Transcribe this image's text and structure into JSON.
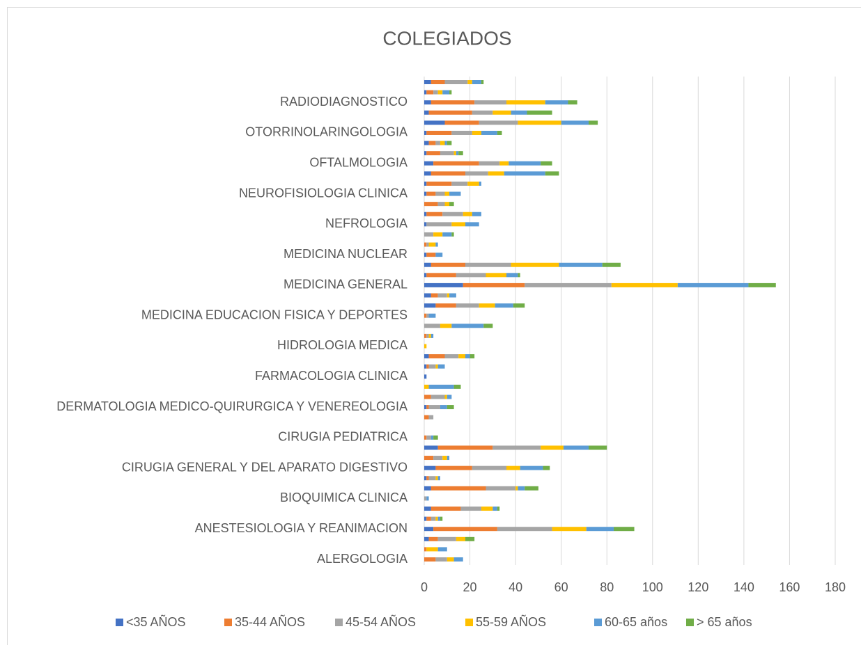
{
  "chart_data": {
    "type": "stacked_barh",
    "title": "COLEGIADOS",
    "categories": [
      "ALERGOLOGIA",
      null,
      null,
      "ANESTESIOLOGIA Y REANIMACION",
      null,
      null,
      "BIOQUIMICA CLINICA",
      null,
      null,
      "CIRUGIA GENERAL Y DEL APARATO DIGESTIVO",
      null,
      null,
      "CIRUGIA PEDIATRICA",
      null,
      null,
      "DERMATOLOGIA MEDICO-QUIRURGICA Y VENEREOLOGIA",
      null,
      null,
      "FARMACOLOGIA CLINICA",
      null,
      null,
      "HIDROLOGIA MEDICA",
      null,
      null,
      "MEDICINA EDUCACION FISICA Y DEPORTES",
      null,
      null,
      "MEDICINA GENERAL",
      null,
      null,
      "MEDICINA NUCLEAR",
      null,
      null,
      "NEFROLOGIA",
      null,
      null,
      "NEUROFISIOLOGIA CLINICA",
      null,
      null,
      "OFTALMOLOGIA",
      null,
      null,
      "OTORRINOLARINGOLOGIA",
      null,
      null,
      "RADIODIAGNOSTICO",
      null,
      null
    ],
    "series": [
      {
        "name": "<35 AÑOS",
        "color": "#4472c4",
        "values": [
          0,
          0,
          2,
          4,
          1,
          3,
          0,
          3,
          1,
          5,
          0,
          6,
          0,
          0,
          0,
          1,
          0,
          0,
          1,
          1,
          2,
          0,
          0,
          0,
          0,
          5,
          3,
          17,
          1,
          3,
          1,
          0,
          0,
          1,
          1,
          0,
          1,
          1,
          3,
          4,
          1,
          2,
          1,
          9,
          2,
          3,
          1,
          3
        ]
      },
      {
        "name": "35-44 AÑOS",
        "color": "#ed7d31",
        "values": [
          5,
          1,
          4,
          28,
          2,
          13,
          0,
          24,
          1,
          16,
          4,
          24,
          1,
          0,
          2,
          1,
          3,
          0,
          0,
          1,
          7,
          0,
          1,
          0,
          1,
          9,
          3,
          27,
          13,
          15,
          4,
          1,
          0,
          0,
          7,
          6,
          4,
          11,
          15,
          20,
          6,
          3,
          11,
          15,
          19,
          19,
          3,
          6
        ]
      },
      {
        "name": "45-54 AÑOS",
        "color": "#a5a5a5",
        "values": [
          5,
          0,
          8,
          24,
          2,
          9,
          1,
          13,
          3,
          15,
          4,
          21,
          2,
          0,
          2,
          5,
          6,
          0,
          0,
          3,
          6,
          0,
          1,
          7,
          1,
          10,
          4,
          38,
          13,
          20,
          0,
          1,
          4,
          11,
          9,
          3,
          4,
          7,
          10,
          9,
          6,
          2,
          9,
          17,
          9,
          14,
          2,
          10
        ]
      },
      {
        "name": "55-59 AÑOS",
        "color": "#ffc000",
        "values": [
          3,
          5,
          4,
          15,
          1,
          5,
          0,
          1,
          1,
          6,
          2,
          10,
          0,
          0,
          0,
          0,
          1,
          2,
          0,
          1,
          3,
          1,
          1,
          5,
          0,
          7,
          1,
          29,
          9,
          21,
          0,
          3,
          4,
          6,
          4,
          2,
          2,
          5,
          7,
          4,
          1,
          2,
          4,
          19,
          8,
          17,
          2,
          2
        ]
      },
      {
        "name": "60-65 años",
        "color": "#5b9bd5",
        "values": [
          4,
          4,
          0,
          12,
          1,
          2,
          1,
          3,
          1,
          10,
          1,
          11,
          1,
          0,
          0,
          3,
          2,
          11,
          0,
          3,
          2,
          0,
          1,
          14,
          3,
          8,
          3,
          31,
          5,
          19,
          3,
          1,
          4,
          6,
          4,
          0,
          5,
          1,
          18,
          14,
          1,
          1,
          7,
          12,
          7,
          10,
          3,
          4
        ]
      },
      {
        "name": "> 65 años",
        "color": "#70ad47",
        "values": [
          0,
          0,
          4,
          9,
          1,
          1,
          0,
          6,
          0,
          3,
          0,
          8,
          2,
          0,
          0,
          3,
          0,
          3,
          0,
          0,
          2,
          0,
          0,
          4,
          0,
          5,
          0,
          12,
          1,
          8,
          0,
          0,
          1,
          0,
          0,
          2,
          0,
          0,
          6,
          5,
          2,
          2,
          2,
          4,
          11,
          4,
          1,
          1
        ]
      }
    ],
    "xlim": [
      0,
      180
    ],
    "xticks": [
      0,
      20,
      40,
      60,
      80,
      100,
      120,
      140,
      160,
      180
    ],
    "grid": true,
    "legend": "bottom"
  }
}
